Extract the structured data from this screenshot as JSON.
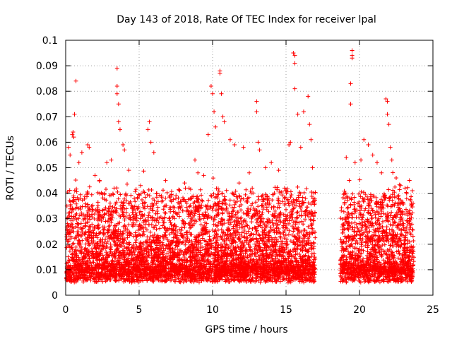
{
  "chart_data": {
    "type": "scatter",
    "title": "Day 143 of 2018, Rate Of TEC Index for receiver lpal",
    "xlabel": "GPS time / hours",
    "ylabel": "ROTI / TECUs",
    "xlim": [
      0,
      25
    ],
    "ylim": [
      0,
      0.1
    ],
    "x_ticks": [
      "0",
      "5",
      "10",
      "15",
      "20",
      "25"
    ],
    "y_ticks": [
      "0",
      "0.01",
      "0.02",
      "0.03",
      "0.04",
      "0.05",
      "0.06",
      "0.07",
      "0.08",
      "0.09",
      "0.1"
    ],
    "grid": true,
    "marker": "+",
    "color": "#ff0000",
    "data_gap_hours": [
      17.0,
      18.7
    ],
    "series": [
      {
        "points": [
          [
            0.2,
            0.058
          ],
          [
            0.3,
            0.055
          ],
          [
            0.45,
            0.063
          ],
          [
            0.5,
            0.064
          ],
          [
            0.55,
            0.062
          ],
          [
            0.7,
            0.084
          ],
          [
            0.6,
            0.071
          ],
          [
            0.9,
            0.052
          ],
          [
            1.1,
            0.056
          ],
          [
            1.5,
            0.059
          ],
          [
            1.6,
            0.058
          ],
          [
            2.0,
            0.047
          ],
          [
            2.3,
            0.045
          ],
          [
            2.8,
            0.052
          ],
          [
            3.1,
            0.053
          ],
          [
            3.5,
            0.089
          ],
          [
            3.5,
            0.082
          ],
          [
            3.5,
            0.079
          ],
          [
            3.6,
            0.075
          ],
          [
            3.6,
            0.068
          ],
          [
            3.7,
            0.065
          ],
          [
            3.9,
            0.059
          ],
          [
            4.0,
            0.057
          ],
          [
            4.3,
            0.049
          ],
          [
            5.1,
            0.043
          ],
          [
            5.6,
            0.065
          ],
          [
            5.7,
            0.068
          ],
          [
            5.8,
            0.06
          ],
          [
            6.0,
            0.056
          ],
          [
            6.2,
            0.04
          ],
          [
            7.1,
            0.039
          ],
          [
            7.5,
            0.038
          ],
          [
            8.1,
            0.044
          ],
          [
            8.4,
            0.042
          ],
          [
            8.8,
            0.053
          ],
          [
            9.0,
            0.048
          ],
          [
            9.4,
            0.047
          ],
          [
            9.7,
            0.063
          ],
          [
            9.9,
            0.082
          ],
          [
            10.0,
            0.079
          ],
          [
            10.1,
            0.072
          ],
          [
            10.2,
            0.066
          ],
          [
            10.5,
            0.088
          ],
          [
            10.5,
            0.087
          ],
          [
            10.6,
            0.079
          ],
          [
            10.7,
            0.07
          ],
          [
            10.8,
            0.068
          ],
          [
            11.2,
            0.061
          ],
          [
            11.5,
            0.059
          ],
          [
            11.8,
            0.044
          ],
          [
            12.1,
            0.058
          ],
          [
            12.5,
            0.048
          ],
          [
            12.7,
            0.042
          ],
          [
            13.0,
            0.076
          ],
          [
            13.0,
            0.072
          ],
          [
            13.1,
            0.06
          ],
          [
            13.2,
            0.057
          ],
          [
            13.6,
            0.05
          ],
          [
            14.0,
            0.052
          ],
          [
            14.5,
            0.049
          ],
          [
            14.9,
            0.042
          ],
          [
            15.2,
            0.059
          ],
          [
            15.3,
            0.06
          ],
          [
            15.5,
            0.095
          ],
          [
            15.6,
            0.094
          ],
          [
            15.6,
            0.091
          ],
          [
            15.6,
            0.081
          ],
          [
            15.8,
            0.071
          ],
          [
            16.0,
            0.058
          ],
          [
            16.2,
            0.072
          ],
          [
            16.5,
            0.078
          ],
          [
            16.6,
            0.067
          ],
          [
            16.7,
            0.061
          ],
          [
            16.8,
            0.05
          ],
          [
            19.1,
            0.054
          ],
          [
            19.3,
            0.045
          ],
          [
            19.5,
            0.096
          ],
          [
            19.5,
            0.094
          ],
          [
            19.5,
            0.093
          ],
          [
            19.4,
            0.083
          ],
          [
            19.4,
            0.075
          ],
          [
            19.7,
            0.052
          ],
          [
            20.1,
            0.053
          ],
          [
            20.3,
            0.061
          ],
          [
            20.6,
            0.059
          ],
          [
            20.9,
            0.055
          ],
          [
            21.2,
            0.052
          ],
          [
            21.5,
            0.048
          ],
          [
            21.8,
            0.077
          ],
          [
            21.9,
            0.076
          ],
          [
            21.9,
            0.071
          ],
          [
            22.0,
            0.067
          ],
          [
            22.1,
            0.058
          ],
          [
            22.2,
            0.053
          ],
          [
            22.5,
            0.046
          ],
          [
            22.8,
            0.043
          ],
          [
            23.1,
            0.042
          ],
          [
            23.4,
            0.045
          ],
          [
            23.6,
            0.041
          ]
        ]
      }
    ]
  }
}
